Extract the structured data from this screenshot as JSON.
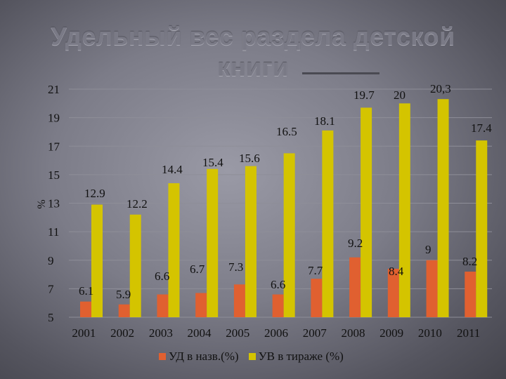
{
  "slide": {
    "title": "Удельный вес раздела детской книги"
  },
  "chart_data": {
    "type": "bar",
    "categories": [
      "2001",
      "2002",
      "2003",
      "2004",
      "2005",
      "2006",
      "2007",
      "2008",
      "2009",
      "2010",
      "2011"
    ],
    "series": [
      {
        "name": "УД в назв.(%)",
        "color": "#e06030",
        "values": [
          6.1,
          5.9,
          6.6,
          6.7,
          7.3,
          6.6,
          7.7,
          9.2,
          8.4,
          9,
          8.2
        ],
        "labels": [
          "6.1",
          "5.9",
          "6.6",
          "6.7",
          "7.3",
          "6.6",
          "7.7",
          "9.2",
          "8.4",
          "9",
          "8.2"
        ]
      },
      {
        "name": "УВ в тираже (%)",
        "color": "#d4c400",
        "values": [
          12.9,
          12.2,
          14.4,
          15.4,
          15.6,
          16.5,
          18.1,
          19.7,
          20,
          20.3,
          17.4
        ],
        "labels": [
          "12.9",
          "12.2",
          "14.4",
          "15.4",
          "15.6",
          "16.5",
          "18.1",
          "19.7",
          "20",
          "20,3",
          "17.4"
        ]
      }
    ],
    "yticks": [
      "5",
      "7",
      "9",
      "11",
      "13",
      "15",
      "17",
      "19",
      "21"
    ],
    "ylabel": "%",
    "ylim": [
      5,
      21
    ],
    "grid": true,
    "legend": "bottom"
  }
}
